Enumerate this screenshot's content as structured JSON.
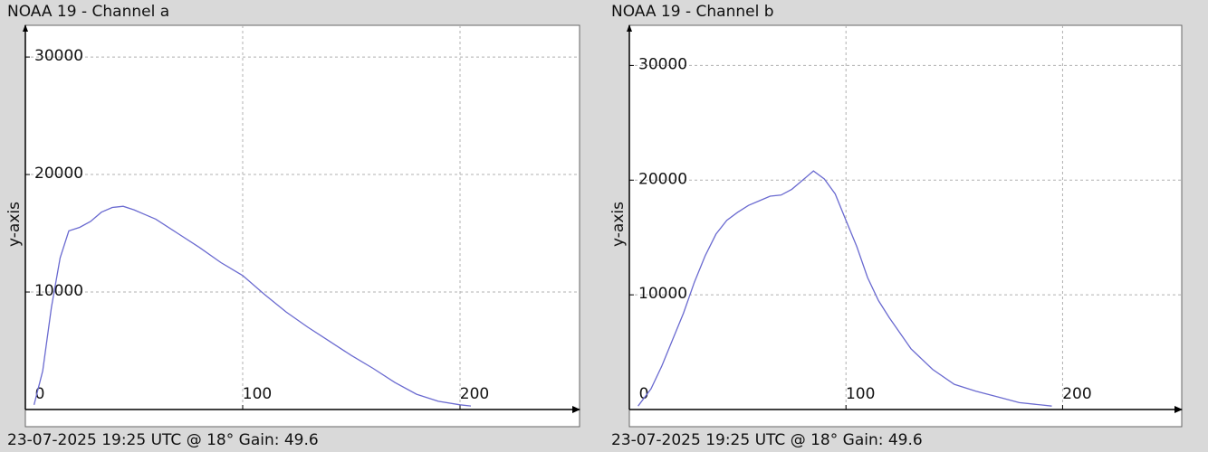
{
  "chart_data": [
    {
      "type": "line",
      "title": "NOAA 19 - Channel a",
      "footer": "23-07-2025 19:25 UTC @ 18° Gain: 49.6",
      "y_label": "y-axis",
      "xlim": [
        0,
        255
      ],
      "ylim": [
        0,
        32700
      ],
      "xticks": [
        0,
        100,
        200
      ],
      "yticks": [
        10000,
        20000,
        30000
      ],
      "grid": true,
      "x": [
        4,
        8,
        12,
        16,
        20,
        25,
        30,
        35,
        40,
        45,
        50,
        55,
        60,
        70,
        80,
        90,
        100,
        110,
        120,
        130,
        140,
        150,
        160,
        170,
        180,
        190,
        200,
        205
      ],
      "series": [
        {
          "color": "#6a6ad0",
          "values": [
            400,
            3300,
            8700,
            12900,
            15200,
            15500,
            16000,
            16800,
            17200,
            17300,
            17000,
            16600,
            16200,
            15000,
            13800,
            12500,
            11400,
            9800,
            8300,
            7000,
            5800,
            4600,
            3500,
            2300,
            1300,
            700,
            400,
            300
          ]
        }
      ]
    },
    {
      "type": "line",
      "title": "NOAA 19 - Channel b",
      "footer": "23-07-2025 19:25 UTC @ 18° Gain: 49.6",
      "y_label": "y-axis",
      "xlim": [
        0,
        255
      ],
      "ylim": [
        0,
        33500
      ],
      "xticks": [
        0,
        100,
        200
      ],
      "yticks": [
        10000,
        20000,
        30000
      ],
      "grid": true,
      "x": [
        4,
        10,
        15,
        20,
        25,
        30,
        35,
        40,
        45,
        50,
        55,
        60,
        65,
        70,
        75,
        80,
        85,
        90,
        95,
        100,
        105,
        110,
        115,
        120,
        130,
        140,
        150,
        160,
        170,
        180,
        190,
        195
      ],
      "series": [
        {
          "color": "#6a6ad0",
          "values": [
            300,
            1800,
            3800,
            6100,
            8400,
            11100,
            13400,
            15300,
            16500,
            17200,
            17800,
            18200,
            18600,
            18700,
            19200,
            20000,
            20800,
            20100,
            18800,
            16500,
            14200,
            11500,
            9500,
            8000,
            5300,
            3500,
            2200,
            1600,
            1100,
            600,
            400,
            300
          ]
        }
      ]
    }
  ]
}
